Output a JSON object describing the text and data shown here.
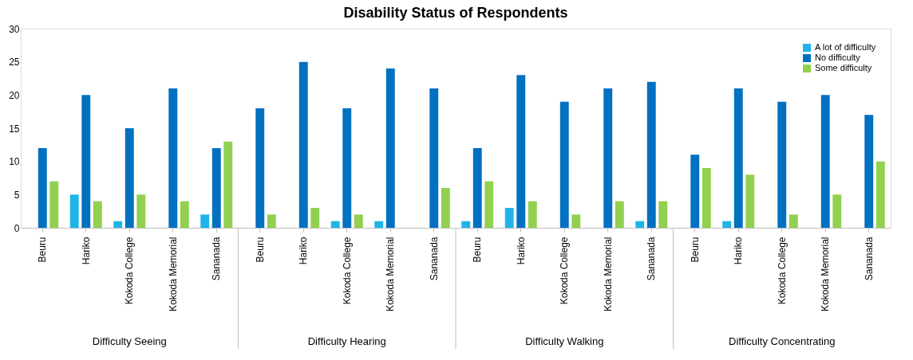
{
  "chart_data": {
    "type": "bar",
    "title": "Disability Status of Respondents",
    "categories": [
      "Beuru",
      "Hariko",
      "Kokoda College",
      "Kokoda Memorial",
      "Sananada",
      "Beuru",
      "Hariko",
      "Kokoda College",
      "Kokoda Memorial",
      "Sananada",
      "Beuru",
      "Hariko",
      "Kokoda College",
      "Kokoda Memorial",
      "Sananada",
      "Beuru",
      "Hariko",
      "Kokoda College",
      "Kokoda Memorial",
      "Sananada"
    ],
    "series": [
      {
        "name": "A lot of difficulty",
        "color": "#1fb4e9",
        "values": [
          null,
          5,
          1,
          null,
          2,
          null,
          null,
          1,
          1,
          null,
          1,
          3,
          null,
          null,
          1,
          null,
          1,
          null,
          null,
          null
        ]
      },
      {
        "name": "No difficulty",
        "color": "#0070c0",
        "values": [
          12,
          20,
          15,
          21,
          12,
          18,
          25,
          18,
          24,
          21,
          12,
          23,
          19,
          21,
          22,
          11,
          21,
          19,
          20,
          17
        ]
      },
      {
        "name": "Some difficulty",
        "color": "#92d050",
        "values": [
          7,
          4,
          5,
          4,
          13,
          2,
          3,
          2,
          null,
          6,
          7,
          4,
          2,
          4,
          4,
          9,
          8,
          2,
          5,
          10
        ]
      }
    ],
    "annotations": [
      "Difficulty Seeing",
      "Difficulty Hearing",
      "Difficulty Walking",
      "Difficulty Concentrating"
    ],
    "ylim": [
      0,
      30
    ],
    "yticks": [
      0,
      5,
      10,
      15,
      20,
      25,
      30
    ],
    "grid": false,
    "legend": "top right"
  }
}
